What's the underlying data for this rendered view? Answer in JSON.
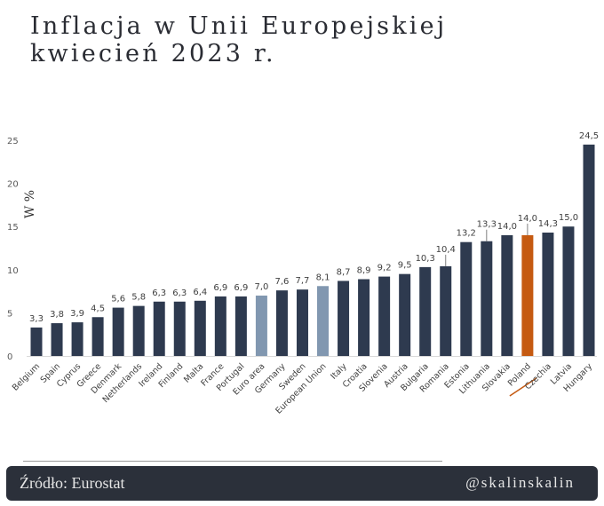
{
  "header": {
    "title_line1": "Inflacja w Unii Europejskiej",
    "title_line2": "kwiecień 2023 r."
  },
  "footer": {
    "source": "Źródło: Eurostat",
    "handle": "@skalinskalin"
  },
  "colors": {
    "default_bar": "#2e3a4f",
    "aggregate_bar": "#8197b0",
    "highlight_bar": "#c55a11",
    "axis_text": "#595959",
    "footer_bg": "#2b303a"
  },
  "chart_data": {
    "type": "bar",
    "title": "Inflacja w Unii Europejskiej kwiecień 2023 r.",
    "xlabel": "",
    "ylabel": "W %",
    "ylim": [
      0,
      25
    ],
    "yticks": [
      "0",
      "5",
      "10",
      "15",
      "20",
      "25"
    ],
    "grid": false,
    "legend": "none",
    "categories": [
      "Belgium",
      "Spain",
      "Cyprus",
      "Greece",
      "Denmark",
      "Netherlands",
      "Ireland",
      "Finland",
      "Malta",
      "France",
      "Portugal",
      "Euro area",
      "Germany",
      "Sweden",
      "European Union",
      "Italy",
      "Croatia",
      "Slovenia",
      "Austria",
      "Bulgaria",
      "Romania",
      "Estonia",
      "Lithuania",
      "Slovakia",
      "Poland",
      "Czechia",
      "Latvia",
      "Hungary"
    ],
    "values": [
      3.3,
      3.8,
      3.9,
      4.5,
      5.6,
      5.8,
      6.3,
      6.3,
      6.4,
      6.9,
      6.9,
      7.0,
      7.6,
      7.7,
      8.1,
      8.7,
      8.9,
      9.2,
      9.5,
      10.3,
      10.4,
      13.2,
      13.3,
      14.0,
      14.0,
      14.3,
      15.0,
      24.5
    ],
    "labels": [
      "3,3",
      "3,8",
      "3,9",
      "4,5",
      "5,6",
      "5,8",
      "6,3",
      "6,3",
      "6,4",
      "6,9",
      "6,9",
      "7,0",
      "7,6",
      "7,7",
      "8,1",
      "8,7",
      "8,9",
      "9,2",
      "9,5",
      "10,3",
      "10,4",
      "13,2",
      "13,3",
      "14,0",
      "14,0",
      "14,3",
      "15,0",
      "24,5"
    ],
    "bar_kind": [
      "c",
      "c",
      "c",
      "c",
      "c",
      "c",
      "c",
      "c",
      "c",
      "c",
      "c",
      "a",
      "c",
      "c",
      "a",
      "c",
      "c",
      "c",
      "c",
      "c",
      "c",
      "c",
      "c",
      "c",
      "h",
      "c",
      "c",
      "c"
    ],
    "leader_lines": [
      "Romania",
      "Lithuania",
      "Poland"
    ],
    "underlined_category": "Poland"
  }
}
